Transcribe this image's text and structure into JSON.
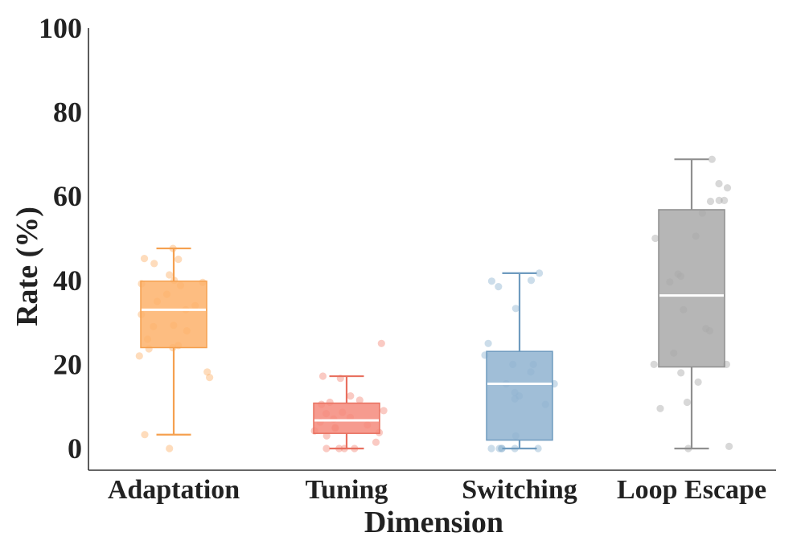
{
  "chart_data": {
    "type": "box",
    "title": "",
    "xlabel": "Dimension",
    "ylabel": "Rate (%)",
    "ylim": [
      0,
      100
    ],
    "yticks": [
      0,
      20,
      40,
      60,
      80,
      100
    ],
    "ytick_labels": [
      "0",
      "20",
      "40",
      "60",
      "80",
      "100"
    ],
    "grid": false,
    "categories": [
      "Adaptation",
      "Tuning",
      "Switching",
      "Loop Escape"
    ],
    "series": [
      {
        "name": "Adaptation",
        "color": "#FDB26B",
        "edge_color": "#F5A04F",
        "stats": {
          "whisker_low": 3.3,
          "q1": 24.0,
          "median": 33.0,
          "q3": 39.8,
          "whisker_high": 47.6
        },
        "points": [
          47.6,
          45.0,
          45.2,
          44.0,
          41.3,
          40.0,
          39.2,
          39.5,
          38.8,
          36.7,
          35.0,
          34.0,
          33.0,
          31.9,
          29.3,
          29.0,
          28.0,
          26.0,
          24.5,
          24.0,
          23.7,
          22.0,
          18.2,
          16.9,
          3.3,
          0.0
        ]
      },
      {
        "name": "Tuning",
        "color": "#F4897B",
        "edge_color": "#E8705F",
        "stats": {
          "whisker_low": 0.0,
          "q1": 3.6,
          "median": 6.7,
          "q3": 10.8,
          "whisker_high": 17.2
        },
        "points": [
          25.0,
          17.2,
          16.7,
          12.5,
          11.5,
          11.0,
          10.5,
          9.0,
          8.6,
          8.3,
          7.4,
          7.0,
          6.3,
          5.6,
          5.0,
          4.8,
          4.2,
          3.8,
          3.0,
          1.5,
          0.0,
          0.0,
          0.0,
          0.0
        ]
      },
      {
        "name": "Switching",
        "color": "#8FB3D0",
        "edge_color": "#6F9BBF",
        "stats": {
          "whisker_low": 0.0,
          "q1": 2.0,
          "median": 15.4,
          "q3": 23.1,
          "whisker_high": 41.7
        },
        "points": [
          41.7,
          40.0,
          39.8,
          38.5,
          33.3,
          25.0,
          22.2,
          20.0,
          20.0,
          18.2,
          15.4,
          15.4,
          13.3,
          12.5,
          11.8,
          10.5,
          3.0,
          0.0,
          0.0,
          0.0,
          0.0,
          0.0,
          0.0
        ]
      },
      {
        "name": "Loop Escape",
        "color": "#A9A9A9",
        "edge_color": "#8F8F8F",
        "stats": {
          "whisker_low": 0.0,
          "q1": 19.4,
          "median": 36.4,
          "q3": 56.8,
          "whisker_high": 68.8
        },
        "points": [
          68.8,
          63.0,
          62.0,
          59.0,
          59.0,
          58.8,
          56.0,
          50.5,
          50.0,
          41.5,
          41.0,
          39.6,
          33.0,
          28.5,
          28.0,
          22.7,
          20.0,
          20.0,
          18.0,
          15.8,
          11.0,
          9.5,
          0.5,
          0.0
        ]
      }
    ]
  }
}
